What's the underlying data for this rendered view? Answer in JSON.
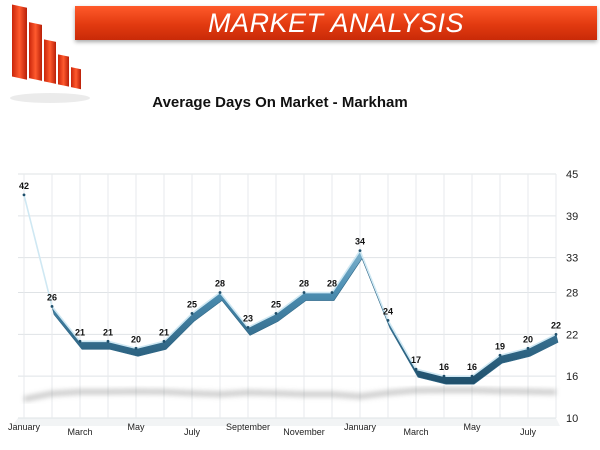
{
  "header": {
    "title": "MARKET ANALYSIS",
    "icon": "bar-chart-logo-icon",
    "accent": "#e8431a"
  },
  "chart_data": {
    "type": "line",
    "title": "Average Days On Market - Markham",
    "xlabel": "",
    "ylabel": "",
    "x_tick_labels": [
      "January",
      "March",
      "May",
      "July",
      "September",
      "November",
      "January",
      "March",
      "May",
      "July"
    ],
    "points": [
      {
        "month": "January",
        "value": 42
      },
      {
        "month": "February",
        "value": 26
      },
      {
        "month": "March",
        "value": 21
      },
      {
        "month": "April",
        "value": 21
      },
      {
        "month": "May",
        "value": 20
      },
      {
        "month": "June",
        "value": 21
      },
      {
        "month": "July",
        "value": 25
      },
      {
        "month": "August",
        "value": 28
      },
      {
        "month": "September",
        "value": 23
      },
      {
        "month": "October",
        "value": 25
      },
      {
        "month": "November",
        "value": 28
      },
      {
        "month": "December",
        "value": 28
      },
      {
        "month": "January",
        "value": 34
      },
      {
        "month": "February",
        "value": 24
      },
      {
        "month": "March",
        "value": 17
      },
      {
        "month": "April",
        "value": 16
      },
      {
        "month": "May",
        "value": 16
      },
      {
        "month": "June",
        "value": 19
      },
      {
        "month": "July",
        "value": 20
      },
      {
        "month": "August",
        "value": 22
      }
    ],
    "y_ticks": [
      10,
      16,
      22,
      28,
      33,
      39,
      45
    ],
    "ylim": [
      10,
      45
    ],
    "y_axis_side": "right",
    "grid": true,
    "line_color": "#4d8fb3"
  }
}
